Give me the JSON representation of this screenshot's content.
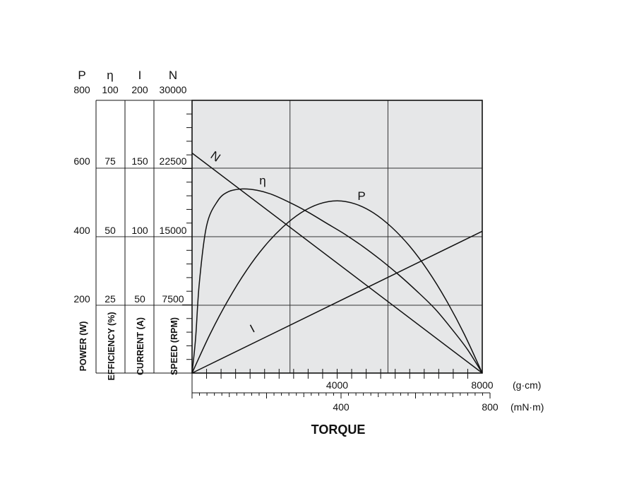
{
  "chart_data": {
    "type": "line",
    "xlabel": "TORQUE",
    "x_units": [
      "(g·cm)",
      "(mN·m)"
    ],
    "x_axis_gcm": {
      "range": [
        0,
        8000
      ],
      "tick_labels": [
        "4000",
        "8000"
      ],
      "major_step": 4000
    },
    "x_axis_mNm": {
      "range": [
        0,
        800
      ],
      "tick_labels": [
        "400",
        "800"
      ],
      "major_step": 400
    },
    "y_axes": [
      {
        "key": "P",
        "symbol": "P",
        "label": "POWER (W)",
        "ticks": [
          "800",
          "600",
          "400",
          "200"
        ],
        "range": [
          0,
          800
        ]
      },
      {
        "key": "eta",
        "symbol": "η",
        "label": "EFFICIENCY (%)",
        "ticks": [
          "100",
          "75",
          "50",
          "25"
        ],
        "range": [
          0,
          100
        ]
      },
      {
        "key": "I",
        "symbol": "I",
        "label": "CURRENT (A)",
        "ticks": [
          "200",
          "150",
          "100",
          "50"
        ],
        "range": [
          0,
          200
        ]
      },
      {
        "key": "N",
        "symbol": "N",
        "label": "SPEED (RPM)",
        "ticks": [
          "30000",
          "22500",
          "15000",
          "7500"
        ],
        "range": [
          0,
          30000
        ]
      }
    ],
    "grid": true,
    "series": [
      {
        "name": "N",
        "axis": "N",
        "x": [
          0,
          8000
        ],
        "y": [
          24200,
          0
        ]
      },
      {
        "name": "I",
        "axis": "I",
        "x": [
          0,
          8000
        ],
        "y": [
          0,
          104
        ]
      },
      {
        "name": "P",
        "axis": "P",
        "x": [
          0,
          500,
          1000,
          1500,
          2000,
          2500,
          3000,
          3500,
          4000,
          4500,
          5000,
          5500,
          6000,
          6500,
          7000,
          7500,
          8000
        ],
        "y": [
          0,
          115,
          215,
          301,
          372,
          428,
          470,
          496,
          505,
          496,
          470,
          428,
          372,
          301,
          215,
          115,
          0
        ]
      },
      {
        "name": "η",
        "axis": "eta",
        "x": [
          0,
          100,
          200,
          400,
          700,
          1000,
          1400,
          1800,
          2200,
          2700,
          3200,
          3700,
          4200,
          4700,
          5200,
          5700,
          6200,
          6700,
          7200,
          7600,
          8000
        ],
        "y": [
          0,
          13,
          33,
          54,
          63,
          66.5,
          67.5,
          67,
          65.5,
          62.5,
          59,
          55,
          51,
          46.5,
          41.5,
          36,
          30,
          23.5,
          15.5,
          8.5,
          0
        ]
      }
    ]
  }
}
